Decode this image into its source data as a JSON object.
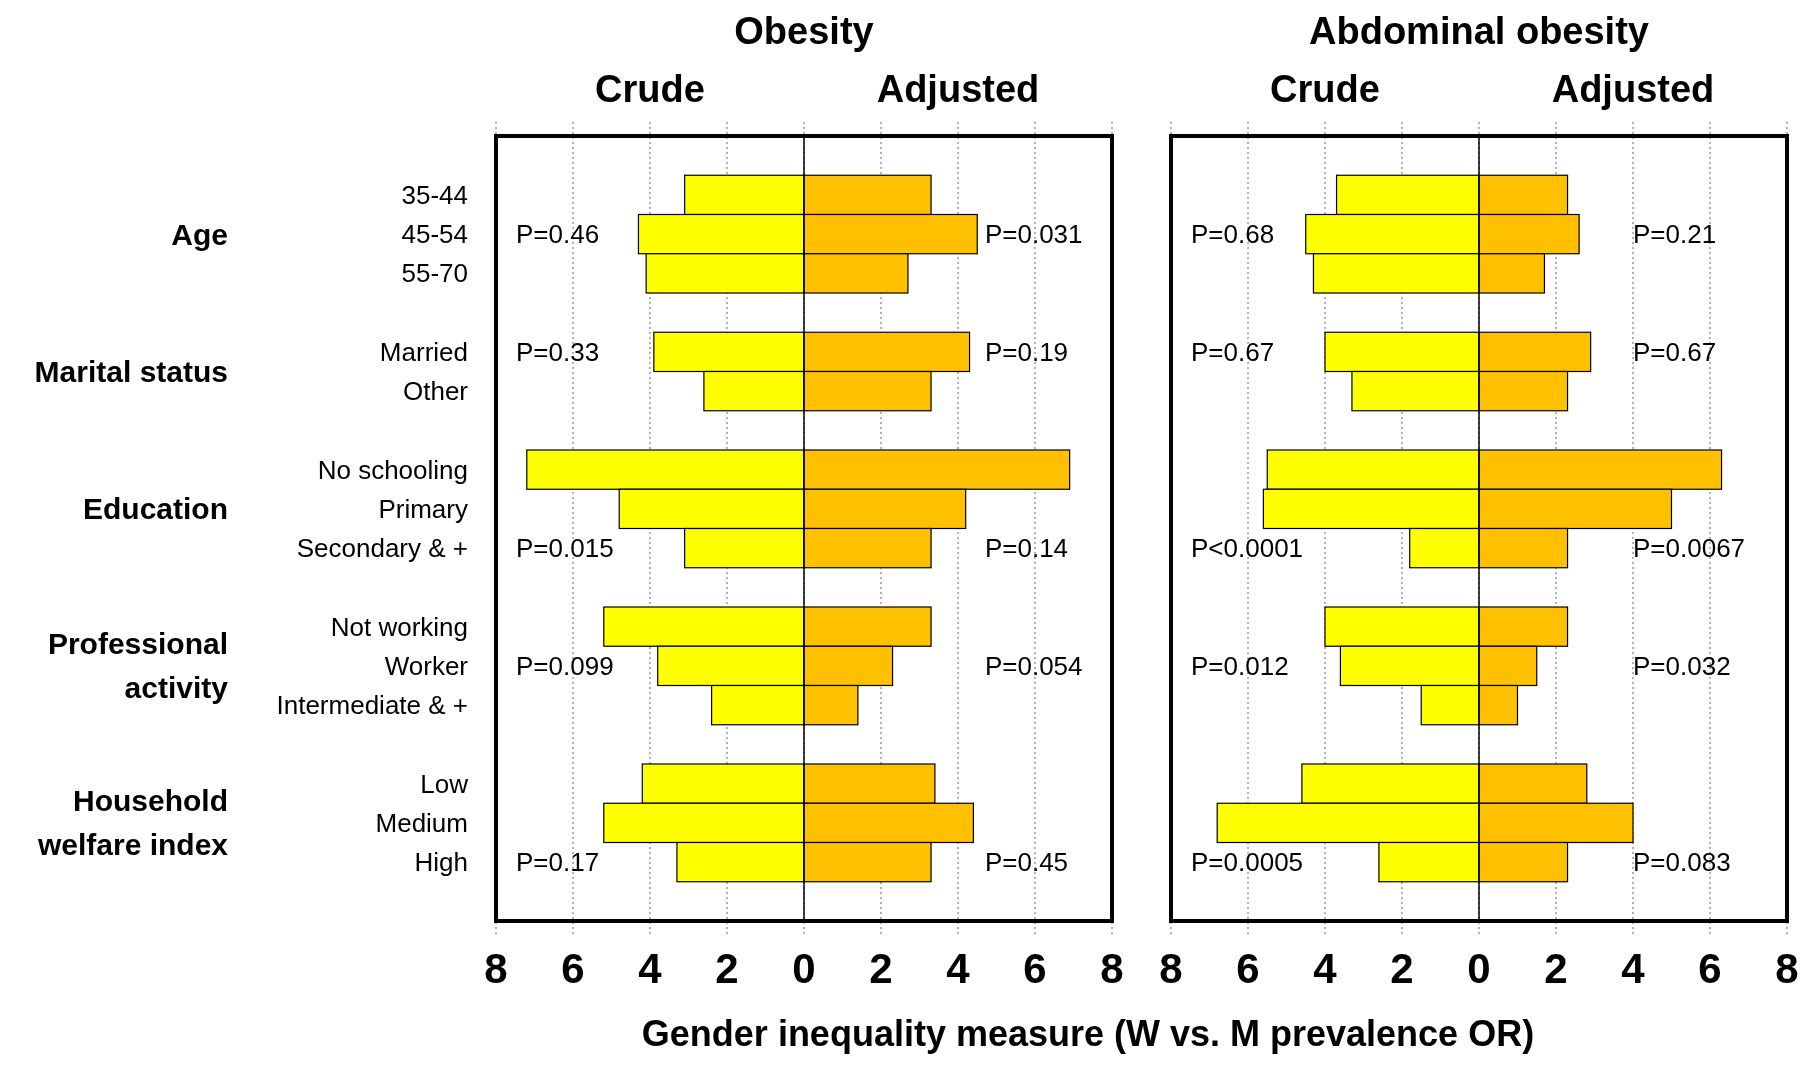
{
  "chart_data": [
    {
      "type": "bar",
      "orientation": "horizontal",
      "stacked": true,
      "title": "Obesity",
      "xlabel": "Gender inequality measure (W vs. M prevalence OR)",
      "categories": [
        "35-44",
        "45-54",
        "55-70",
        null,
        "Married",
        "Other",
        null,
        "No schooling",
        "Primary",
        "Secondary & +",
        null,
        "Not working",
        "Worker",
        "Intermediate & +",
        null,
        "Low",
        "Medium",
        "High"
      ],
      "series": [
        {
          "name": "Crude",
          "color": "#ffff00",
          "values": [
            -3.1,
            -4.3,
            -4.1,
            null,
            -3.9,
            -2.6,
            null,
            -7.2,
            -4.8,
            -3.1,
            null,
            -5.2,
            -3.8,
            -2.4,
            null,
            -4.2,
            -5.2,
            -3.3
          ]
        },
        {
          "name": "Adjusted",
          "color": "#ffc000",
          "values": [
            3.3,
            4.5,
            2.7,
            null,
            4.3,
            3.3,
            null,
            6.9,
            4.2,
            3.3,
            null,
            3.3,
            2.3,
            1.4,
            null,
            3.4,
            4.4,
            3.3
          ]
        }
      ],
      "xlim": [
        -8,
        8
      ],
      "xticks": [
        {
          "value": -8,
          "label": "8"
        },
        {
          "value": -6,
          "label": "6"
        },
        {
          "value": -4,
          "label": "4"
        },
        {
          "value": -2,
          "label": "2"
        },
        0,
        2,
        4,
        6,
        8
      ],
      "grid": "x",
      "legend": false,
      "annotations": [
        "Age",
        "Marital status",
        "Education",
        "Professional activity",
        "Household welfare index",
        "P=0.46",
        "P=0.031",
        "P=0.33",
        "P=0.19",
        "P=0.015",
        "P=0.14",
        "P=0.099",
        "P=0.054",
        "P=0.17",
        "P=0.45"
      ]
    },
    {
      "type": "bar",
      "orientation": "horizontal",
      "stacked": true,
      "title": "Abdominal obesity",
      "categories": [
        null,
        null,
        null,
        null,
        null,
        null,
        null,
        null,
        null,
        null,
        null,
        null,
        null,
        null,
        null,
        null,
        null,
        null
      ],
      "series": [
        {
          "name": "Crude",
          "color": "#ffff00",
          "values": [
            -3.7,
            -4.5,
            -4.3,
            null,
            -4.0,
            -3.3,
            null,
            -5.5,
            -5.6,
            -1.8,
            null,
            -4.0,
            -3.6,
            -1.5,
            null,
            -4.6,
            -6.8,
            -2.6
          ]
        },
        {
          "name": "Adjusted",
          "color": "#ffc000",
          "values": [
            2.3,
            2.6,
            1.7,
            null,
            2.9,
            2.3,
            null,
            6.3,
            5.0,
            2.3,
            null,
            2.3,
            1.5,
            1.0,
            null,
            2.8,
            4.0,
            2.3
          ]
        }
      ],
      "xlim": [
        -8,
        8
      ],
      "xticks": [
        {
          "value": -8,
          "label": "8"
        },
        {
          "value": -6,
          "label": "6"
        },
        {
          "value": -4,
          "label": "4"
        },
        {
          "value": -2,
          "label": "2"
        },
        0,
        2,
        4,
        6,
        8
      ],
      "grid": "x",
      "legend": false,
      "annotations": [
        "P=0.68",
        "P=0.21",
        "P=0.67",
        "P=0.67",
        "P<0.0001",
        "P=0.0067",
        "P=0.012",
        "P=0.032",
        "P=0.0005",
        "P=0.083"
      ]
    }
  ]
}
